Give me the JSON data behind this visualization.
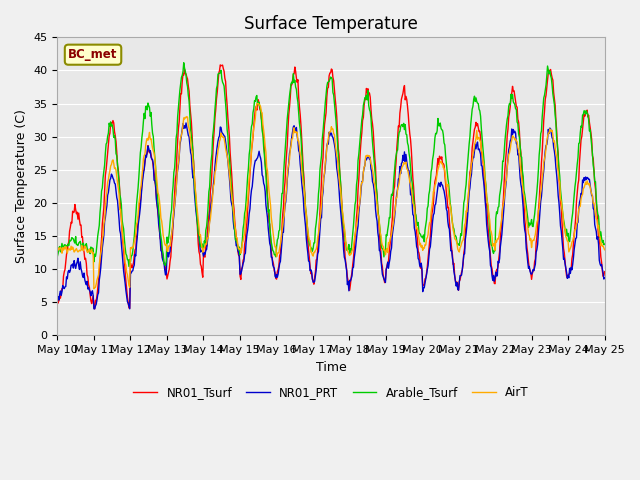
{
  "title": "Surface Temperature",
  "xlabel": "Time",
  "ylabel": "Surface Temperature (C)",
  "ylim": [
    0,
    45
  ],
  "xtick_labels": [
    "May 10",
    "May 11",
    "May 12",
    "May 13",
    "May 14",
    "May 15",
    "May 16",
    "May 17",
    "May 18",
    "May 19",
    "May 20",
    "May 21",
    "May 22",
    "May 23",
    "May 24",
    "May 25"
  ],
  "annotation_text": "BC_met",
  "legend_labels": [
    "NR01_Tsurf",
    "NR01_PRT",
    "Arable_Tsurf",
    "AirT"
  ],
  "line_colors": [
    "#ff0000",
    "#0000cc",
    "#00cc00",
    "#ffaa00"
  ],
  "plot_bg_color": "#e8e8e8",
  "fig_bg_color": "#f0f0f0",
  "title_fontsize": 12,
  "axis_label_fontsize": 9,
  "tick_fontsize": 8
}
